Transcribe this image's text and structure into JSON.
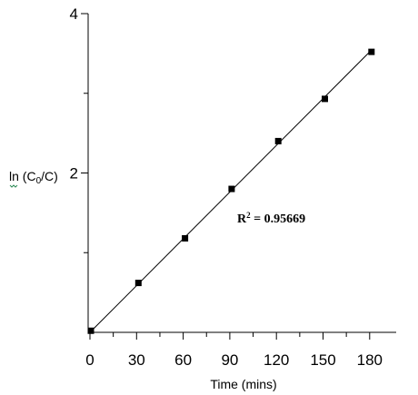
{
  "chart_data": {
    "type": "scatter",
    "xlabel": "Time (mins)",
    "ylabel_prefix": "ln (C",
    "ylabel_sub": "0",
    "ylabel_mid": "/C",
    "ylabel_end": ")",
    "x_ticks": [
      "0",
      "30",
      "60",
      "90",
      "120",
      "150",
      "180"
    ],
    "y_ticks": [
      "2",
      "4"
    ],
    "xlim": [
      0,
      190
    ],
    "ylim": [
      0,
      4
    ],
    "points": [
      {
        "x": 0,
        "y": 0.02
      },
      {
        "x": 30,
        "y": 0.62
      },
      {
        "x": 60,
        "y": 1.18
      },
      {
        "x": 90,
        "y": 1.8
      },
      {
        "x": 120,
        "y": 2.4
      },
      {
        "x": 150,
        "y": 2.93
      },
      {
        "x": 180,
        "y": 3.52
      }
    ],
    "fit_line": {
      "x0": 0,
      "y0": 0.0,
      "x1": 180,
      "y1": 3.52
    },
    "annotation_prefix": "R",
    "annotation_sup": "2",
    "annotation_value": " = 0.95669",
    "grid": false,
    "legend": "none"
  }
}
